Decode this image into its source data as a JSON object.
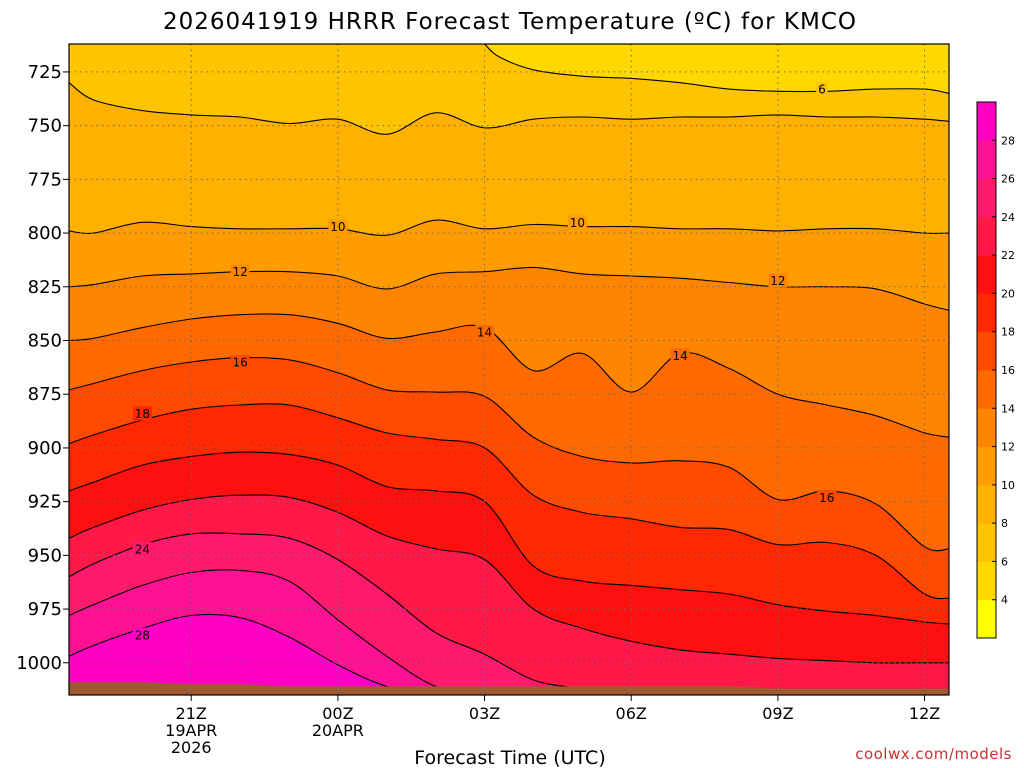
{
  "chart_data": {
    "type": "contour",
    "title": "2026041919 HRRR Forecast Temperature (ºC) for KMCO",
    "xlabel": "Forecast Time (UTC)",
    "ylabel": "",
    "credit": "coolwx.com/models",
    "x_unit": "hours after 19Z 19APR2026",
    "xlim": [
      -0.5,
      17.5
    ],
    "ylim": [
      1015,
      712
    ],
    "x_ticks": [
      {
        "x": 2,
        "lines": [
          "21Z",
          "19APR",
          "2026"
        ]
      },
      {
        "x": 5,
        "lines": [
          "00Z",
          "20APR"
        ]
      },
      {
        "x": 8,
        "lines": [
          "03Z"
        ]
      },
      {
        "x": 11,
        "lines": [
          "06Z"
        ]
      },
      {
        "x": 14,
        "lines": [
          "09Z"
        ]
      },
      {
        "x": 17,
        "lines": [
          "12Z"
        ]
      }
    ],
    "y_ticks": [
      725,
      750,
      775,
      800,
      825,
      850,
      875,
      900,
      925,
      950,
      975,
      1000
    ],
    "times": [
      -0.5,
      0,
      1,
      2,
      3,
      4,
      5,
      6,
      7,
      8,
      9,
      10,
      11,
      12,
      13,
      14,
      15,
      16,
      17,
      17.5
    ],
    "isotherms": [
      {
        "temp": 8,
        "pressure": [
          730,
          738,
          743,
          745,
          746,
          749,
          747,
          754,
          744,
          751,
          747,
          746,
          747,
          746,
          746,
          745,
          746,
          746,
          747,
          748
        ]
      },
      {
        "temp": 10,
        "pressure": [
          799,
          800,
          795,
          797,
          798,
          798,
          798,
          801,
          794,
          798,
          796,
          797,
          797,
          798,
          798,
          799,
          798,
          798,
          800,
          800
        ]
      },
      {
        "temp": 12,
        "pressure": [
          825,
          824,
          820,
          819,
          818,
          818,
          820,
          826,
          819,
          818,
          816,
          819,
          820,
          821,
          823,
          825,
          825,
          826,
          833,
          836
        ]
      },
      {
        "temp": 14,
        "pressure": [
          850,
          849,
          844,
          840,
          838,
          838,
          842,
          849,
          846,
          844,
          864,
          856,
          874,
          856,
          863,
          875,
          880,
          885,
          893,
          895
        ]
      },
      {
        "temp": 16,
        "pressure": [
          873,
          870,
          864,
          860,
          858,
          859,
          865,
          873,
          874,
          876,
          895,
          904,
          907,
          906,
          909,
          924,
          920,
          926,
          946,
          947
        ]
      },
      {
        "temp": 18,
        "pressure": [
          898,
          894,
          887,
          882,
          880,
          880,
          886,
          893,
          896,
          900,
          922,
          930,
          933,
          937,
          938,
          945,
          944,
          950,
          968,
          970
        ]
      },
      {
        "temp": 20,
        "pressure": [
          920,
          916,
          908,
          904,
          902,
          903,
          908,
          918,
          920,
          925,
          955,
          962,
          964,
          966,
          968,
          973,
          976,
          978,
          981,
          982
        ]
      },
      {
        "temp": 22,
        "pressure": [
          942,
          937,
          929,
          924,
          922,
          923,
          930,
          941,
          947,
          952,
          975,
          984,
          990,
          994,
          996,
          998,
          999,
          1000,
          1000,
          1000
        ]
      },
      {
        "temp": 24,
        "pressure": [
          960,
          954,
          945,
          940,
          940,
          942,
          952,
          968,
          986,
          996,
          1008,
          1012,
          1014,
          1015,
          1015,
          1015,
          1015,
          1015,
          1015,
          1015
        ]
      },
      {
        "temp": 26,
        "pressure": [
          978,
          973,
          964,
          958,
          957,
          962,
          980,
          997,
          1011,
          1015,
          1015,
          1015,
          1015,
          1015,
          1015,
          1015,
          1015,
          1015,
          1015,
          1015
        ]
      },
      {
        "temp": 28,
        "pressure": [
          997,
          992,
          984,
          978,
          979,
          988,
          1001,
          1011,
          1015,
          1015,
          1015,
          1015,
          1015,
          1015,
          1015,
          1015,
          1015,
          1015,
          1015,
          1015
        ]
      }
    ],
    "warm_pocket_6C": {
      "temp": 6,
      "points": [
        [
          8,
          712
        ],
        [
          8.3,
          718
        ],
        [
          9,
          724
        ],
        [
          10,
          727
        ],
        [
          11,
          728
        ],
        [
          12,
          730
        ],
        [
          13,
          733
        ],
        [
          14,
          734
        ],
        [
          15,
          734
        ],
        [
          16,
          733
        ],
        [
          17,
          733
        ],
        [
          17.5,
          735
        ],
        [
          17.5,
          712
        ]
      ]
    },
    "contour_labels": [
      {
        "value": "6",
        "x": 14.9,
        "p": 733
      },
      {
        "value": "10",
        "x": 5,
        "p": 797
      },
      {
        "value": "10",
        "x": 9.9,
        "p": 795
      },
      {
        "value": "12",
        "x": 3,
        "p": 818
      },
      {
        "value": "12",
        "x": 14,
        "p": 822
      },
      {
        "value": "14",
        "x": 8,
        "p": 846
      },
      {
        "value": "14",
        "x": 12,
        "p": 857
      },
      {
        "value": "16",
        "x": 3,
        "p": 860
      },
      {
        "value": "16",
        "x": 15,
        "p": 923
      },
      {
        "value": "18",
        "x": 1,
        "p": 884
      },
      {
        "value": "24",
        "x": 1,
        "p": 947
      },
      {
        "value": "28",
        "x": 1,
        "p": 987
      }
    ],
    "colorbar": {
      "levels": [
        2,
        4,
        6,
        8,
        10,
        12,
        14,
        16,
        18,
        20,
        22,
        24,
        26,
        28,
        30
      ],
      "tick_labels": [
        "4",
        "6",
        "8",
        "10",
        "12",
        "14",
        "16",
        "18",
        "20",
        "22",
        "24",
        "26",
        "28"
      ],
      "colors": [
        "#ffff00",
        "#ffd800",
        "#ffc400",
        "#ffb100",
        "#ff9d00",
        "#ff8400",
        "#ff6a00",
        "#ff4a00",
        "#ff2800",
        "#ff1010",
        "#ff1848",
        "#ff1a6e",
        "#ff1194",
        "#ff00c4"
      ]
    },
    "surface_pressure": [
      1009,
      1009,
      1009,
      1010,
      1010,
      1011,
      1011,
      1011,
      1011,
      1011,
      1011,
      1011,
      1011,
      1011,
      1011,
      1012,
      1012,
      1012,
      1012,
      1012
    ],
    "ground_color": "#a05a32"
  }
}
